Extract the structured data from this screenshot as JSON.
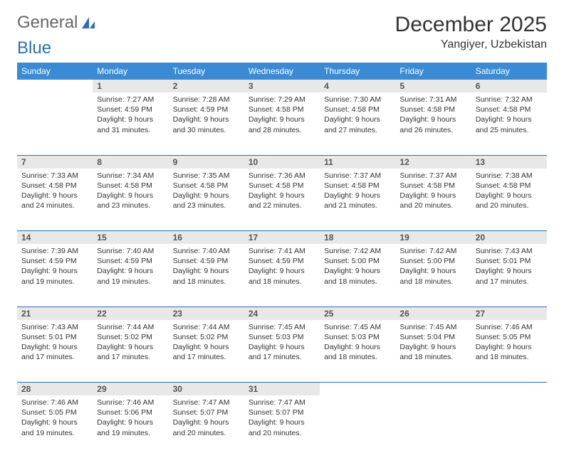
{
  "logo": {
    "text_general": "General",
    "text_blue": "Blue"
  },
  "title": "December 2025",
  "location": "Yangiyer, Uzbekistan",
  "colors": {
    "header_bg": "#3b8bd4",
    "header_fg": "#ffffff",
    "daynum_bg": "#e8e8e8",
    "rule": "#2a6fb5",
    "logo_accent": "#2a6fb5"
  },
  "weekdays": [
    "Sunday",
    "Monday",
    "Tuesday",
    "Wednesday",
    "Thursday",
    "Friday",
    "Saturday"
  ],
  "weeks": [
    [
      null,
      {
        "n": "1",
        "sr": "7:27 AM",
        "ss": "4:59 PM",
        "dl": "9 hours and 31 minutes."
      },
      {
        "n": "2",
        "sr": "7:28 AM",
        "ss": "4:59 PM",
        "dl": "9 hours and 30 minutes."
      },
      {
        "n": "3",
        "sr": "7:29 AM",
        "ss": "4:58 PM",
        "dl": "9 hours and 28 minutes."
      },
      {
        "n": "4",
        "sr": "7:30 AM",
        "ss": "4:58 PM",
        "dl": "9 hours and 27 minutes."
      },
      {
        "n": "5",
        "sr": "7:31 AM",
        "ss": "4:58 PM",
        "dl": "9 hours and 26 minutes."
      },
      {
        "n": "6",
        "sr": "7:32 AM",
        "ss": "4:58 PM",
        "dl": "9 hours and 25 minutes."
      }
    ],
    [
      {
        "n": "7",
        "sr": "7:33 AM",
        "ss": "4:58 PM",
        "dl": "9 hours and 24 minutes."
      },
      {
        "n": "8",
        "sr": "7:34 AM",
        "ss": "4:58 PM",
        "dl": "9 hours and 23 minutes."
      },
      {
        "n": "9",
        "sr": "7:35 AM",
        "ss": "4:58 PM",
        "dl": "9 hours and 23 minutes."
      },
      {
        "n": "10",
        "sr": "7:36 AM",
        "ss": "4:58 PM",
        "dl": "9 hours and 22 minutes."
      },
      {
        "n": "11",
        "sr": "7:37 AM",
        "ss": "4:58 PM",
        "dl": "9 hours and 21 minutes."
      },
      {
        "n": "12",
        "sr": "7:37 AM",
        "ss": "4:58 PM",
        "dl": "9 hours and 20 minutes."
      },
      {
        "n": "13",
        "sr": "7:38 AM",
        "ss": "4:58 PM",
        "dl": "9 hours and 20 minutes."
      }
    ],
    [
      {
        "n": "14",
        "sr": "7:39 AM",
        "ss": "4:59 PM",
        "dl": "9 hours and 19 minutes."
      },
      {
        "n": "15",
        "sr": "7:40 AM",
        "ss": "4:59 PM",
        "dl": "9 hours and 19 minutes."
      },
      {
        "n": "16",
        "sr": "7:40 AM",
        "ss": "4:59 PM",
        "dl": "9 hours and 18 minutes."
      },
      {
        "n": "17",
        "sr": "7:41 AM",
        "ss": "4:59 PM",
        "dl": "9 hours and 18 minutes."
      },
      {
        "n": "18",
        "sr": "7:42 AM",
        "ss": "5:00 PM",
        "dl": "9 hours and 18 minutes."
      },
      {
        "n": "19",
        "sr": "7:42 AM",
        "ss": "5:00 PM",
        "dl": "9 hours and 18 minutes."
      },
      {
        "n": "20",
        "sr": "7:43 AM",
        "ss": "5:01 PM",
        "dl": "9 hours and 17 minutes."
      }
    ],
    [
      {
        "n": "21",
        "sr": "7:43 AM",
        "ss": "5:01 PM",
        "dl": "9 hours and 17 minutes."
      },
      {
        "n": "22",
        "sr": "7:44 AM",
        "ss": "5:02 PM",
        "dl": "9 hours and 17 minutes."
      },
      {
        "n": "23",
        "sr": "7:44 AM",
        "ss": "5:02 PM",
        "dl": "9 hours and 17 minutes."
      },
      {
        "n": "24",
        "sr": "7:45 AM",
        "ss": "5:03 PM",
        "dl": "9 hours and 17 minutes."
      },
      {
        "n": "25",
        "sr": "7:45 AM",
        "ss": "5:03 PM",
        "dl": "9 hours and 18 minutes."
      },
      {
        "n": "26",
        "sr": "7:45 AM",
        "ss": "5:04 PM",
        "dl": "9 hours and 18 minutes."
      },
      {
        "n": "27",
        "sr": "7:46 AM",
        "ss": "5:05 PM",
        "dl": "9 hours and 18 minutes."
      }
    ],
    [
      {
        "n": "28",
        "sr": "7:46 AM",
        "ss": "5:05 PM",
        "dl": "9 hours and 19 minutes."
      },
      {
        "n": "29",
        "sr": "7:46 AM",
        "ss": "5:06 PM",
        "dl": "9 hours and 19 minutes."
      },
      {
        "n": "30",
        "sr": "7:47 AM",
        "ss": "5:07 PM",
        "dl": "9 hours and 20 minutes."
      },
      {
        "n": "31",
        "sr": "7:47 AM",
        "ss": "5:07 PM",
        "dl": "9 hours and 20 minutes."
      },
      null,
      null,
      null
    ]
  ],
  "labels": {
    "sunrise": "Sunrise:",
    "sunset": "Sunset:",
    "daylight": "Daylight:"
  }
}
